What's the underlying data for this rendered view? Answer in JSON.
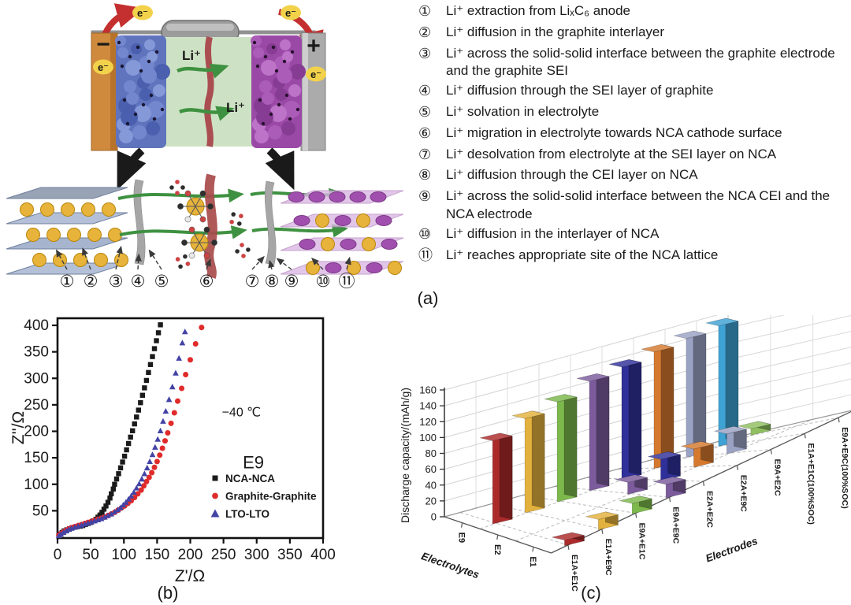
{
  "captions": {
    "a": "(a)",
    "b": "(b)",
    "c": "(c)"
  },
  "schematic": {
    "electron_label": "e⁻",
    "li_ion_label": "Li⁺",
    "anode_sign": "−",
    "cathode_sign": "+",
    "step_numbers": [
      "①",
      "②",
      "③",
      "④",
      "⑤",
      "⑥",
      "⑦",
      "⑧",
      "⑨",
      "⑩",
      "⑪"
    ]
  },
  "process_steps": [
    {
      "num": "①",
      "text": "Li⁺ extraction from LiₓC₆ anode"
    },
    {
      "num": "②",
      "text": "Li⁺ diffusion in the graphite interlayer"
    },
    {
      "num": "③",
      "text": "Li⁺ across the solid-solid interface between the graphite electrode and the graphite SEI"
    },
    {
      "num": "④",
      "text": "Li⁺ diffusion through the SEI layer of graphite"
    },
    {
      "num": "⑤",
      "text": "Li⁺ solvation in electrolyte"
    },
    {
      "num": "⑥",
      "text": "Li⁺ migration in electrolyte towards NCA cathode surface"
    },
    {
      "num": "⑦",
      "text": "Li⁺ desolvation from electrolyte at the SEI layer on NCA"
    },
    {
      "num": "⑧",
      "text": "Li⁺ diffusion through the CEI layer on NCA"
    },
    {
      "num": "⑨",
      "text": "Li⁺ across the solid-solid interface between the NCA CEI and the NCA electrode"
    },
    {
      "num": "⑩",
      "text": "Li⁺ diffusion in the interlayer of NCA"
    },
    {
      "num": "⑪",
      "text": "Li⁺ reaches appropriate site of the NCA lattice"
    }
  ],
  "chart_data": [
    {
      "id": "nyquist",
      "type": "scatter",
      "xlabel": "Z'/Ω",
      "ylabel": "Z''/Ω",
      "xlim": [
        0,
        400
      ],
      "ylim": [
        0,
        410
      ],
      "xticks": [
        0,
        50,
        100,
        150,
        200,
        250,
        300,
        350,
        400
      ],
      "yticks": [
        50,
        100,
        150,
        200,
        250,
        300,
        350,
        400
      ],
      "grid": false,
      "legend_position": "lower right",
      "annotations": [
        {
          "text": "−40 ℃",
          "x": 277,
          "y": 228
        },
        {
          "text": "E9",
          "x": 295,
          "y": 130
        }
      ],
      "series": [
        {
          "name": "NCA-NCA",
          "marker": "square",
          "color": "#1a1a1a",
          "points": [
            [
              2,
              3
            ],
            [
              4,
              6
            ],
            [
              7,
              9
            ],
            [
              10,
              12
            ],
            [
              14,
              14
            ],
            [
              18,
              16
            ],
            [
              22,
              18
            ],
            [
              26,
              19
            ],
            [
              30,
              20
            ],
            [
              34,
              21
            ],
            [
              38,
              22
            ],
            [
              42,
              24
            ],
            [
              46,
              26
            ],
            [
              50,
              28
            ],
            [
              54,
              31
            ],
            [
              58,
              34
            ],
            [
              61,
              38
            ],
            [
              64,
              42
            ],
            [
              67,
              47
            ],
            [
              70,
              53
            ],
            [
              73,
              59
            ],
            [
              76,
              66
            ],
            [
              79,
              74
            ],
            [
              81,
              82
            ],
            [
              84,
              91
            ],
            [
              86,
              100
            ],
            [
              89,
              110
            ],
            [
              92,
              120
            ],
            [
              95,
              131
            ],
            [
              98,
              142
            ],
            [
              101,
              153
            ],
            [
              104,
              165
            ],
            [
              107,
              177
            ],
            [
              110,
              189
            ],
            [
              113,
              201
            ],
            [
              116,
              214
            ],
            [
              119,
              227
            ],
            [
              122,
              240
            ],
            [
              125,
              254
            ],
            [
              128,
              268
            ],
            [
              131,
              282
            ],
            [
              134,
              296
            ],
            [
              137,
              311
            ],
            [
              140,
              326
            ],
            [
              143,
              341
            ],
            [
              146,
              356
            ],
            [
              149,
              371
            ],
            [
              152,
              386
            ],
            [
              155,
              401
            ]
          ]
        },
        {
          "name": "Graphite-Graphite",
          "marker": "circle",
          "color": "#e02b2b",
          "points": [
            [
              2,
              4
            ],
            [
              5,
              7
            ],
            [
              9,
              10
            ],
            [
              13,
              13
            ],
            [
              17,
              16
            ],
            [
              21,
              18
            ],
            [
              26,
              20
            ],
            [
              31,
              22
            ],
            [
              36,
              24
            ],
            [
              41,
              26
            ],
            [
              46,
              28
            ],
            [
              51,
              30
            ],
            [
              56,
              32
            ],
            [
              61,
              34
            ],
            [
              66,
              36
            ],
            [
              71,
              38
            ],
            [
              76,
              41
            ],
            [
              81,
              44
            ],
            [
              86,
              47
            ],
            [
              91,
              51
            ],
            [
              96,
              55
            ],
            [
              101,
              59
            ],
            [
              106,
              64
            ],
            [
              111,
              69
            ],
            [
              116,
              75
            ],
            [
              121,
              82
            ],
            [
              126,
              89
            ],
            [
              130,
              97
            ],
            [
              134,
              105
            ],
            [
              138,
              113
            ],
            [
              142,
              122
            ],
            [
              146,
              132
            ],
            [
              150,
              143
            ],
            [
              154,
              155
            ],
            [
              158,
              168
            ],
            [
              162,
              182
            ],
            [
              166,
              197
            ],
            [
              171,
              215
            ],
            [
              176,
              235
            ],
            [
              181,
              257
            ],
            [
              187,
              281
            ],
            [
              193,
              307
            ],
            [
              200,
              335
            ],
            [
              208,
              365
            ],
            [
              217,
              396
            ]
          ]
        },
        {
          "name": "LTO-LTO",
          "marker": "triangle",
          "color": "#4343a5",
          "points": [
            [
              2,
              3
            ],
            [
              5,
              6
            ],
            [
              9,
              9
            ],
            [
              13,
              12
            ],
            [
              17,
              15
            ],
            [
              21,
              17
            ],
            [
              26,
              19
            ],
            [
              31,
              21
            ],
            [
              36,
              23
            ],
            [
              41,
              25
            ],
            [
              46,
              27
            ],
            [
              51,
              29
            ],
            [
              56,
              31
            ],
            [
              61,
              33
            ],
            [
              66,
              35
            ],
            [
              71,
              38
            ],
            [
              76,
              41
            ],
            [
              81,
              44
            ],
            [
              86,
              48
            ],
            [
              91,
              52
            ],
            [
              95,
              56
            ],
            [
              99,
              61
            ],
            [
              103,
              66
            ],
            [
              107,
              72
            ],
            [
              111,
              78
            ],
            [
              115,
              85
            ],
            [
              119,
              93
            ],
            [
              123,
              101
            ],
            [
              127,
              110
            ],
            [
              131,
              120
            ],
            [
              135,
              131
            ],
            [
              139,
              143
            ],
            [
              143,
              156
            ],
            [
              147,
              170
            ],
            [
              151,
              185
            ],
            [
              155,
              201
            ],
            [
              159,
              219
            ],
            [
              163,
              238
            ],
            [
              168,
              260
            ],
            [
              173,
              284
            ],
            [
              178,
              310
            ],
            [
              183,
              338
            ],
            [
              188,
              367
            ],
            [
              192,
              388
            ]
          ]
        }
      ]
    },
    {
      "id": "capacity3d",
      "type": "bar",
      "projection": "3d",
      "ylabel": "Discharge capacity/(mAh/g)",
      "ylim": [
        0,
        160
      ],
      "yticks": [
        0,
        20,
        40,
        60,
        80,
        100,
        120,
        140,
        160
      ],
      "electrode_axis_label": "Electrodes",
      "electrolyte_axis_label": "Electrolytes",
      "electrolytes": [
        "E9",
        "E2",
        "E1"
      ],
      "electrodes": [
        "E1A+E1C",
        "E1A+E9C",
        "E9A+E1C",
        "E9A+E9C",
        "E2A+E2C",
        "E2A+E9C",
        "E9A+E2C",
        "E1A+E1C(100%SOC)",
        "E9A+E9C(100%SOC)"
      ],
      "bars": [
        {
          "electrode": "E1A+E1C",
          "electrolyte": "E9",
          "value": 105,
          "color": "#ab2a2a"
        },
        {
          "electrode": "E1A+E1C",
          "electrolyte": "E1",
          "value": 7,
          "color": "#ab2a2a"
        },
        {
          "electrode": "E1A+E9C",
          "electrolyte": "E9",
          "value": 119,
          "color": "#e3b13d"
        },
        {
          "electrode": "E1A+E9C",
          "electrolyte": "E1",
          "value": 13,
          "color": "#e3b13d"
        },
        {
          "electrode": "E9A+E1C",
          "electrolyte": "E9",
          "value": 126,
          "color": "#7cb84b"
        },
        {
          "electrode": "E9A+E1C",
          "electrolyte": "E1",
          "value": 13,
          "color": "#7cb84b"
        },
        {
          "electrode": "E9A+E9C",
          "electrolyte": "E9",
          "value": 138,
          "color": "#7b5b9c"
        },
        {
          "electrode": "E9A+E9C",
          "electrolyte": "E2",
          "value": 15,
          "color": "#7b5b9c"
        },
        {
          "electrode": "E9A+E9C",
          "electrolyte": "E1",
          "value": 17,
          "color": "#7b5b9c"
        },
        {
          "electrode": "E2A+E2C",
          "electrolyte": "E9",
          "value": 142,
          "color": "#30309a"
        },
        {
          "electrode": "E2A+E2C",
          "electrolyte": "E2",
          "value": 27,
          "color": "#30309a"
        },
        {
          "electrode": "E2A+E9C",
          "electrolyte": "E9",
          "value": 147,
          "color": "#d5792f"
        },
        {
          "electrode": "E2A+E9C",
          "electrolyte": "E2",
          "value": 23,
          "color": "#d5792f"
        },
        {
          "electrode": "E9A+E2C",
          "electrolyte": "E9",
          "value": 150,
          "color": "#9aa2c4"
        },
        {
          "electrode": "E9A+E2C",
          "electrolyte": "E2",
          "value": 25,
          "color": "#9aa2c4"
        },
        {
          "electrode": "E1A+E1C(100%SOC)",
          "electrolyte": "E9",
          "value": 152,
          "color": "#3fa2d4"
        },
        {
          "electrode": "E9A+E9C(100%SOC)",
          "electrolyte": "E9",
          "value": 8,
          "color": "#8fbf5f"
        }
      ]
    }
  ]
}
